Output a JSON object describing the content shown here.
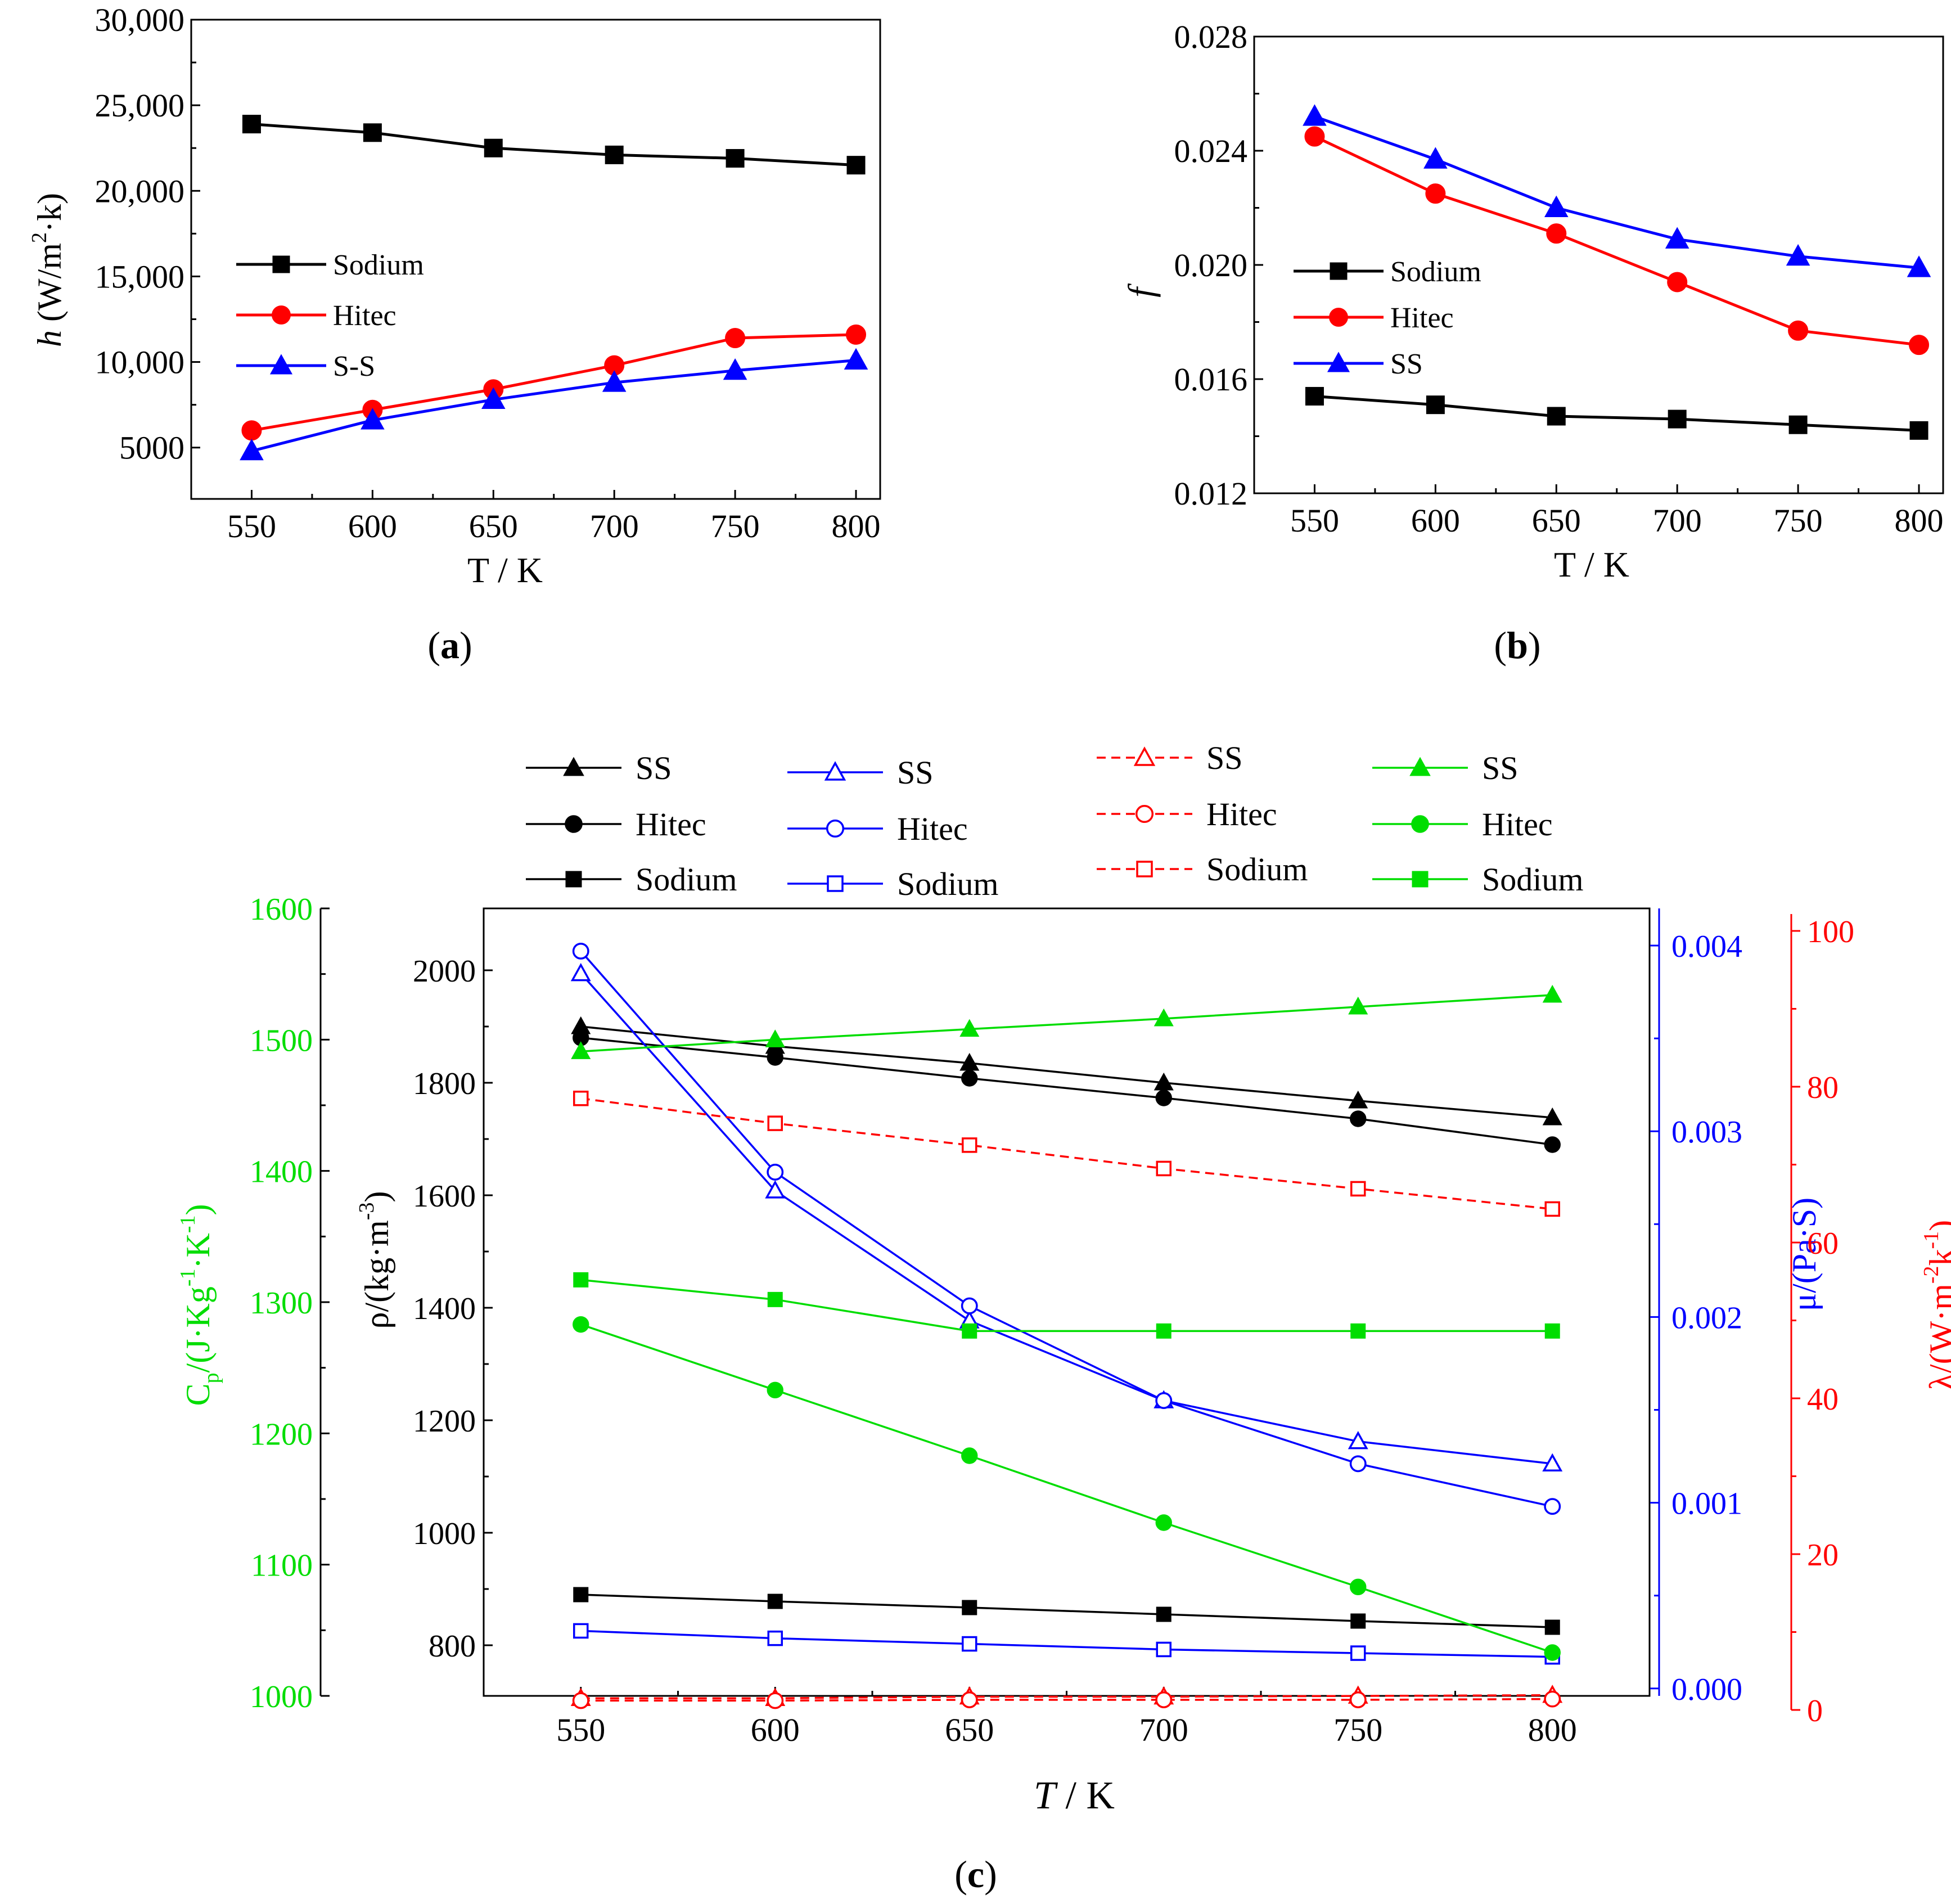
{
  "colors": {
    "black": "#000000",
    "red": "#ff0000",
    "blue": "#0000ff",
    "green": "#00dd00",
    "plot_red": "#ff0000"
  },
  "chart_data": [
    {
      "id": "a",
      "type": "line",
      "panel_label": "(a)",
      "panel_letter": "a",
      "xlabel": "T / K",
      "ylabel_italic": "h",
      "ylabel_rest": " (W/m",
      "ylabel_sup": "2",
      "ylabel_end": "·k)",
      "xlim": [
        525,
        810
      ],
      "ylim": [
        2000,
        30000
      ],
      "x_ticks": [
        550,
        600,
        650,
        700,
        750,
        800
      ],
      "y_ticks": [
        5000,
        10000,
        15000,
        20000,
        25000,
        30000
      ],
      "y_tick_labels": [
        "5000",
        "10,000",
        "15,000",
        "20,000",
        "25,000",
        "30,000"
      ],
      "x": [
        550,
        600,
        650,
        700,
        750,
        800
      ],
      "legend_position": "center-left",
      "series": [
        {
          "name": "Sodium",
          "color": "#000000",
          "marker": "square",
          "filled": true,
          "values": [
            23900,
            23400,
            22500,
            22100,
            21900,
            21500
          ]
        },
        {
          "name": "Hitec",
          "color": "#ff0000",
          "marker": "circle",
          "filled": true,
          "values": [
            6000,
            7200,
            8400,
            9800,
            11400,
            11600
          ]
        },
        {
          "name": "S-S",
          "color": "#0000ff",
          "marker": "triangle",
          "filled": true,
          "values": [
            4800,
            6600,
            7800,
            8800,
            9500,
            10100
          ]
        }
      ]
    },
    {
      "id": "b",
      "type": "line",
      "panel_label": "(b)",
      "panel_letter": "b",
      "xlabel": "T / K",
      "ylabel_italic": "f",
      "xlim": [
        525,
        810
      ],
      "ylim": [
        0.012,
        0.028
      ],
      "x_ticks": [
        550,
        600,
        650,
        700,
        750,
        800
      ],
      "y_ticks": [
        0.012,
        0.016,
        0.02,
        0.024,
        0.028
      ],
      "y_tick_labels": [
        "0.012",
        "0.016",
        "0.020",
        "0.024",
        "0.028"
      ],
      "x": [
        550,
        600,
        650,
        700,
        750,
        800
      ],
      "legend_position": "center-left",
      "series": [
        {
          "name": "Sodium",
          "color": "#000000",
          "marker": "square",
          "filled": true,
          "values": [
            0.0154,
            0.0151,
            0.0147,
            0.0146,
            0.0144,
            0.0142
          ]
        },
        {
          "name": "Hitec",
          "color": "#ff0000",
          "marker": "circle",
          "filled": true,
          "values": [
            0.0245,
            0.0225,
            0.0211,
            0.0194,
            0.0177,
            0.0172
          ]
        },
        {
          "name": "SS",
          "color": "#0000ff",
          "marker": "triangle",
          "filled": true,
          "values": [
            0.0252,
            0.0237,
            0.022,
            0.0209,
            0.0203,
            0.0199
          ]
        }
      ]
    },
    {
      "id": "c",
      "type": "line",
      "panel_label": "(c)",
      "panel_letter": "c",
      "xlabel_italic": "T",
      "xlabel_rest": " / K",
      "xlim": [
        525,
        825
      ],
      "x_ticks": [
        550,
        600,
        650,
        700,
        750,
        800
      ],
      "x": [
        550,
        600,
        650,
        700,
        750,
        800
      ],
      "axes": {
        "rho": {
          "label": "ρ/(kg·m",
          "sup": "-3",
          "end": ")",
          "ylim": [
            710,
            2110
          ],
          "ticks": [
            800,
            1000,
            1200,
            1400,
            1600,
            1800,
            2000
          ],
          "color": "#000000"
        },
        "cp": {
          "label": "C",
          "sub": "p",
          "rest": "/(J·Kg",
          "sup1": "-1",
          "mid": "·K",
          "sup2": "-1",
          "end": ")",
          "ylim": [
            1000,
            1600
          ],
          "ticks": [
            1000,
            1100,
            1200,
            1300,
            1400,
            1500,
            1600
          ],
          "color": "#00dd00"
        },
        "mu": {
          "label": "μ/(Pa·S)",
          "ylim": [
            -4e-05,
            0.0042
          ],
          "ticks": [
            0.0,
            0.001,
            0.002,
            0.003,
            0.004
          ],
          "tick_labels": [
            "0.000",
            "0.001",
            "0.002",
            "0.003",
            "0.004"
          ],
          "color": "#0000ff"
        },
        "lambda": {
          "label": "λ/(W·m",
          "sup1": "-2",
          "mid": "k",
          "sup2": "-1",
          "end": ")",
          "ylim": [
            0,
            100
          ],
          "ticks": [
            0,
            20,
            40,
            60,
            80,
            100
          ],
          "color": "#ff0000"
        }
      },
      "series": [
        {
          "name": "SS",
          "axis": "rho",
          "color": "#000000",
          "marker": "triangle",
          "filled": true,
          "dashed": false,
          "values": [
            1900,
            1865,
            1835,
            1800,
            1768,
            1738
          ]
        },
        {
          "name": "Hitec",
          "axis": "rho",
          "color": "#000000",
          "marker": "circle",
          "filled": true,
          "values": [
            1880,
            1845,
            1808,
            1773,
            1736,
            1690
          ]
        },
        {
          "name": "Sodium",
          "axis": "rho",
          "color": "#000000",
          "marker": "square",
          "filled": true,
          "values": [
            890,
            878,
            867,
            855,
            843,
            832
          ]
        },
        {
          "name": "SS",
          "axis": "mu",
          "color": "#0000ff",
          "marker": "triangle",
          "filled": false,
          "values": [
            0.00385,
            0.00268,
            0.00198,
            0.00155,
            0.00133,
            0.00121
          ]
        },
        {
          "name": "Hitec",
          "axis": "mu",
          "color": "#0000ff",
          "marker": "circle",
          "filled": false,
          "values": [
            0.00397,
            0.00278,
            0.00206,
            0.00155,
            0.00121,
            0.00098
          ]
        },
        {
          "name": "Sodium",
          "axis": "mu",
          "color": "#0000ff",
          "marker": "square",
          "filled": false,
          "values": [
            0.00031,
            0.00027,
            0.00024,
            0.00021,
            0.00019,
            0.00017
          ]
        },
        {
          "name": "SS",
          "axis": "lambda",
          "color": "#ff0000",
          "marker": "triangle",
          "filled": false,
          "dashed": true,
          "values": [
            1.5,
            1.5,
            1.7,
            1.7,
            1.8,
            1.9
          ]
        },
        {
          "name": "Hitec",
          "axis": "lambda",
          "color": "#ff0000",
          "marker": "circle",
          "filled": false,
          "dashed": true,
          "values": [
            1.2,
            1.2,
            1.3,
            1.3,
            1.3,
            1.4
          ]
        },
        {
          "name": "Sodium",
          "axis": "lambda",
          "color": "#ff0000",
          "marker": "square",
          "filled": false,
          "dashed": true,
          "values": [
            78.5,
            75.3,
            72.5,
            69.5,
            66.9,
            64.3
          ]
        },
        {
          "name": "SS",
          "axis": "cp",
          "color": "#00dd00",
          "marker": "triangle",
          "filled": true,
          "values": [
            1491,
            1500,
            1508,
            1516,
            1525,
            1534
          ]
        },
        {
          "name": "Hitec",
          "axis": "cp",
          "color": "#00dd00",
          "marker": "circle",
          "filled": true,
          "values": [
            1283,
            1233,
            1183,
            1132,
            1083,
            1033
          ]
        },
        {
          "name": "Sodium",
          "axis": "cp",
          "color": "#00dd00",
          "marker": "square",
          "filled": true,
          "values": [
            1317,
            1302,
            1278,
            1278,
            1278,
            1278
          ]
        }
      ],
      "legend_groups": [
        {
          "color": "#000000",
          "marker_fill": true,
          "dashed": false,
          "entries": [
            "SS",
            "Hitec",
            "Sodium"
          ]
        },
        {
          "color": "#0000ff",
          "marker_fill": false,
          "dashed": false,
          "entries": [
            "SS",
            "Hitec",
            "Sodium"
          ]
        },
        {
          "color": "#ff0000",
          "marker_fill": false,
          "dashed": true,
          "entries": [
            "SS",
            "Hitec",
            "Sodium"
          ]
        },
        {
          "color": "#00dd00",
          "marker_fill": true,
          "dashed": false,
          "entries": [
            "SS",
            "Hitec",
            "Sodium"
          ]
        }
      ]
    }
  ]
}
